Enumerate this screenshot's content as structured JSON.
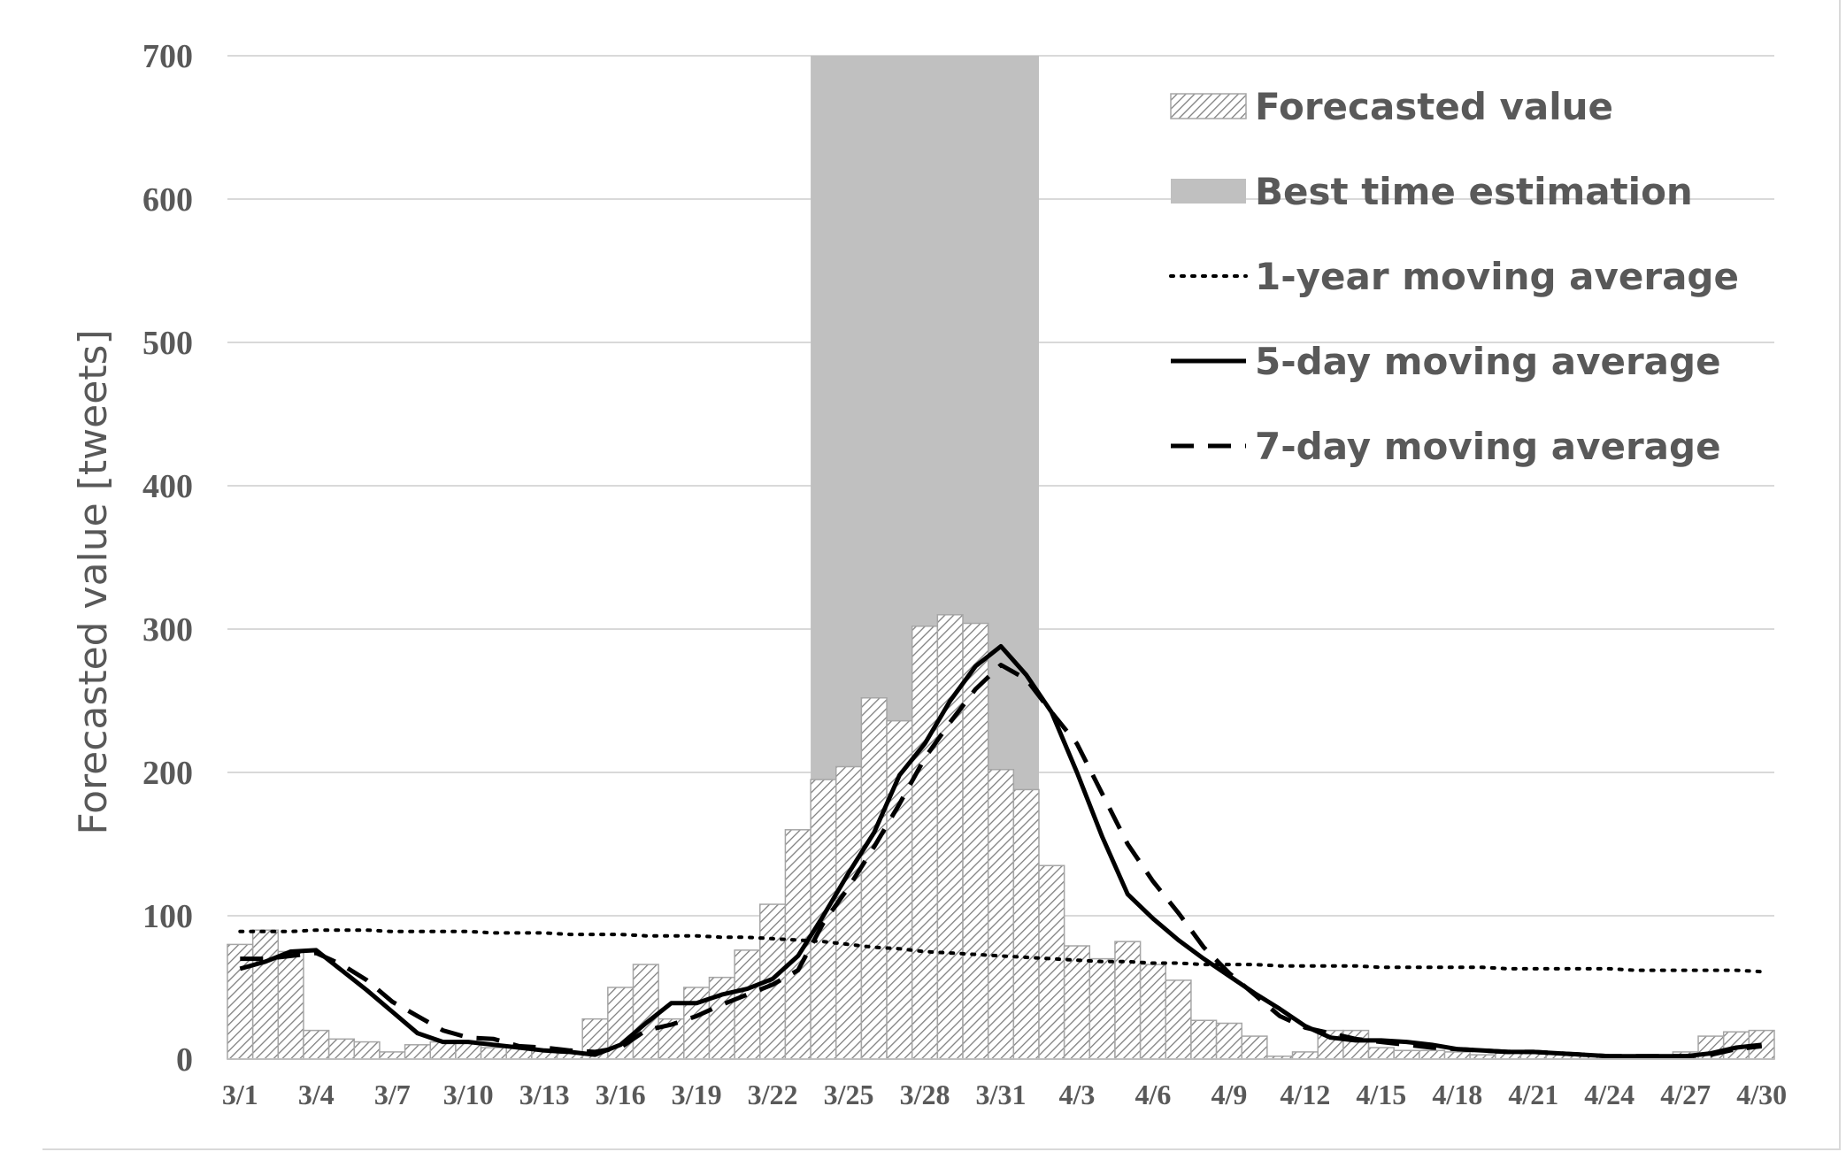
{
  "chart_data": {
    "type": "bar",
    "title": "",
    "xlabel": "",
    "ylabel": "Forecasted value [tweets]",
    "ylim": [
      0,
      700
    ],
    "yticks": [
      0,
      100,
      200,
      300,
      400,
      500,
      600,
      700
    ],
    "grid": "horizontal",
    "legend_position": "top-right",
    "xtick_labels": [
      "3/1",
      "3/4",
      "3/7",
      "3/10",
      "3/13",
      "3/16",
      "3/19",
      "3/22",
      "3/25",
      "3/28",
      "3/31",
      "4/3",
      "4/6",
      "4/9",
      "4/12",
      "4/15",
      "4/18",
      "4/21",
      "4/24",
      "4/27",
      "4/30"
    ],
    "categories": [
      "3/1",
      "3/2",
      "3/3",
      "3/4",
      "3/5",
      "3/6",
      "3/7",
      "3/8",
      "3/9",
      "3/10",
      "3/11",
      "3/12",
      "3/13",
      "3/14",
      "3/15",
      "3/16",
      "3/17",
      "3/18",
      "3/19",
      "3/20",
      "3/21",
      "3/22",
      "3/23",
      "3/24",
      "3/25",
      "3/26",
      "3/27",
      "3/28",
      "3/29",
      "3/30",
      "3/31",
      "4/1",
      "4/2",
      "4/3",
      "4/4",
      "4/5",
      "4/6",
      "4/7",
      "4/8",
      "4/9",
      "4/10",
      "4/11",
      "4/12",
      "4/13",
      "4/14",
      "4/15",
      "4/16",
      "4/17",
      "4/18",
      "4/19",
      "4/20",
      "4/21",
      "4/22",
      "4/23",
      "4/24",
      "4/25",
      "4/26",
      "4/27",
      "4/28",
      "4/29",
      "4/30"
    ],
    "highlight": {
      "name": "Best time estimation",
      "from": "3/24",
      "to": "4/1",
      "color": "#c0c0c0"
    },
    "series": [
      {
        "name": "Forecasted value",
        "kind": "bar",
        "pattern": "hatch",
        "values": [
          80,
          90,
          75,
          20,
          14,
          12,
          5,
          10,
          12,
          12,
          8,
          8,
          6,
          4,
          28,
          50,
          66,
          28,
          50,
          57,
          76,
          108,
          160,
          195,
          204,
          252,
          236,
          302,
          310,
          304,
          202,
          188,
          135,
          79,
          70,
          82,
          66,
          55,
          27,
          25,
          16,
          2,
          5,
          20,
          20,
          8,
          6,
          6,
          5,
          3,
          6,
          5,
          4,
          3,
          2,
          2,
          3,
          5,
          16,
          19,
          20
        ]
      },
      {
        "name": "1-year moving average",
        "kind": "line",
        "style": "dotted",
        "values": [
          89,
          89,
          89,
          90,
          90,
          90,
          89,
          89,
          89,
          89,
          88,
          88,
          88,
          87,
          87,
          87,
          86,
          86,
          86,
          85,
          85,
          84,
          83,
          82,
          80,
          78,
          77,
          75,
          74,
          73,
          72,
          71,
          70,
          69,
          68,
          68,
          67,
          67,
          66,
          66,
          66,
          65,
          65,
          65,
          65,
          64,
          64,
          64,
          64,
          64,
          63,
          63,
          63,
          63,
          63,
          62,
          62,
          62,
          62,
          62,
          61
        ]
      },
      {
        "name": "5-day moving average",
        "kind": "line",
        "style": "solid",
        "values": [
          63,
          68,
          75,
          76,
          62,
          48,
          33,
          18,
          12,
          12,
          10,
          8,
          6,
          5,
          3,
          10,
          25,
          39,
          39,
          45,
          49,
          56,
          72,
          100,
          130,
          158,
          198,
          220,
          250,
          274,
          288,
          268,
          242,
          200,
          155,
          115,
          98,
          83,
          70,
          58,
          46,
          35,
          23,
          15,
          13,
          13,
          12,
          10,
          7,
          6,
          5,
          5,
          4,
          3,
          2,
          2,
          2,
          2,
          4,
          8,
          10
        ]
      },
      {
        "name": "7-day moving average",
        "kind": "line",
        "style": "dashed",
        "values": [
          70,
          70,
          72,
          74,
          66,
          55,
          40,
          30,
          20,
          15,
          14,
          9,
          8,
          6,
          5,
          8,
          20,
          24,
          30,
          38,
          45,
          52,
          62,
          95,
          120,
          148,
          178,
          210,
          235,
          258,
          275,
          265,
          242,
          220,
          185,
          150,
          124,
          102,
          78,
          60,
          45,
          30,
          22,
          18,
          14,
          12,
          10,
          8,
          7,
          6,
          5,
          5,
          4,
          3,
          2,
          2,
          2,
          2,
          3,
          7,
          9
        ]
      }
    ]
  }
}
